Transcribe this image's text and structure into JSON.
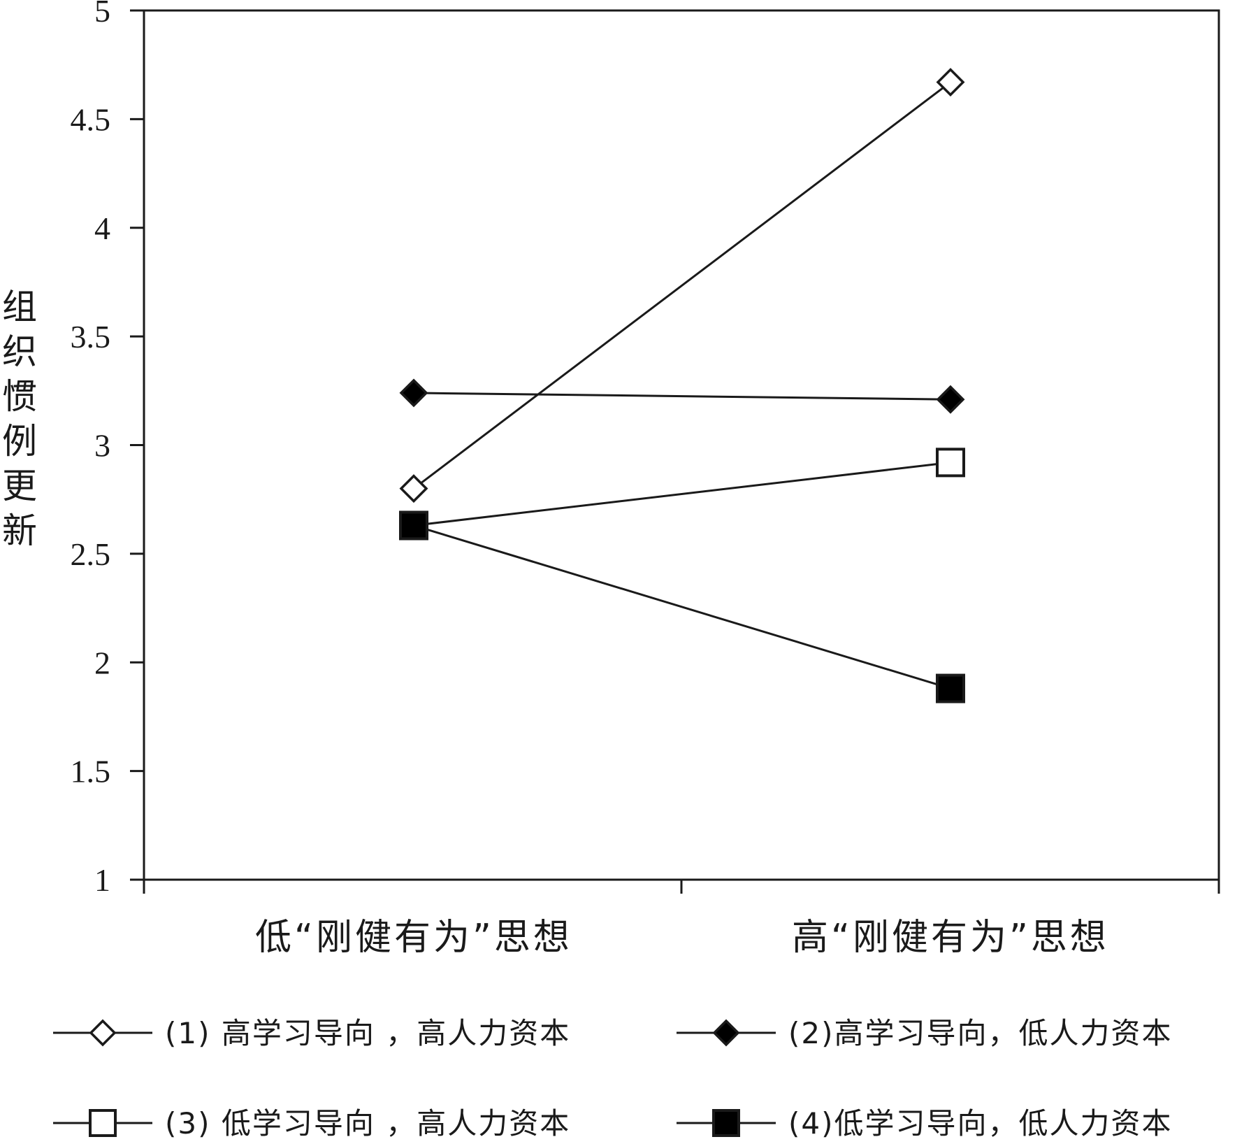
{
  "chart_data": {
    "type": "line",
    "ylabel": "组织惯例更新",
    "ylim": [
      1,
      5
    ],
    "yticks": [
      "1",
      "1.5",
      "2",
      "2.5",
      "3",
      "3.5",
      "4",
      "4.5",
      "5"
    ],
    "categories": [
      "低“刚健有为”思想",
      "高“刚健有为”思想"
    ],
    "grid": false,
    "legend_position": "bottom",
    "series": [
      {
        "name": "(1) 高学习导向 ，高人力资本",
        "marker": "diamond-open",
        "values": [
          2.8,
          4.67
        ]
      },
      {
        "name": "(2)高学习导向，低人力资本",
        "marker": "diamond-filled",
        "values": [
          3.24,
          3.21
        ]
      },
      {
        "name": "(3) 低学习导向 ，高人力资本",
        "marker": "square-open",
        "values": [
          2.63,
          2.92
        ]
      },
      {
        "name": "(4)低学习导向，低人力资本",
        "marker": "square-filled",
        "values": [
          2.63,
          1.88
        ]
      }
    ],
    "colors": {
      "line": "#1a1a1a",
      "marker_fill_open": "#ffffff",
      "marker_fill_solid": "#000000"
    }
  }
}
